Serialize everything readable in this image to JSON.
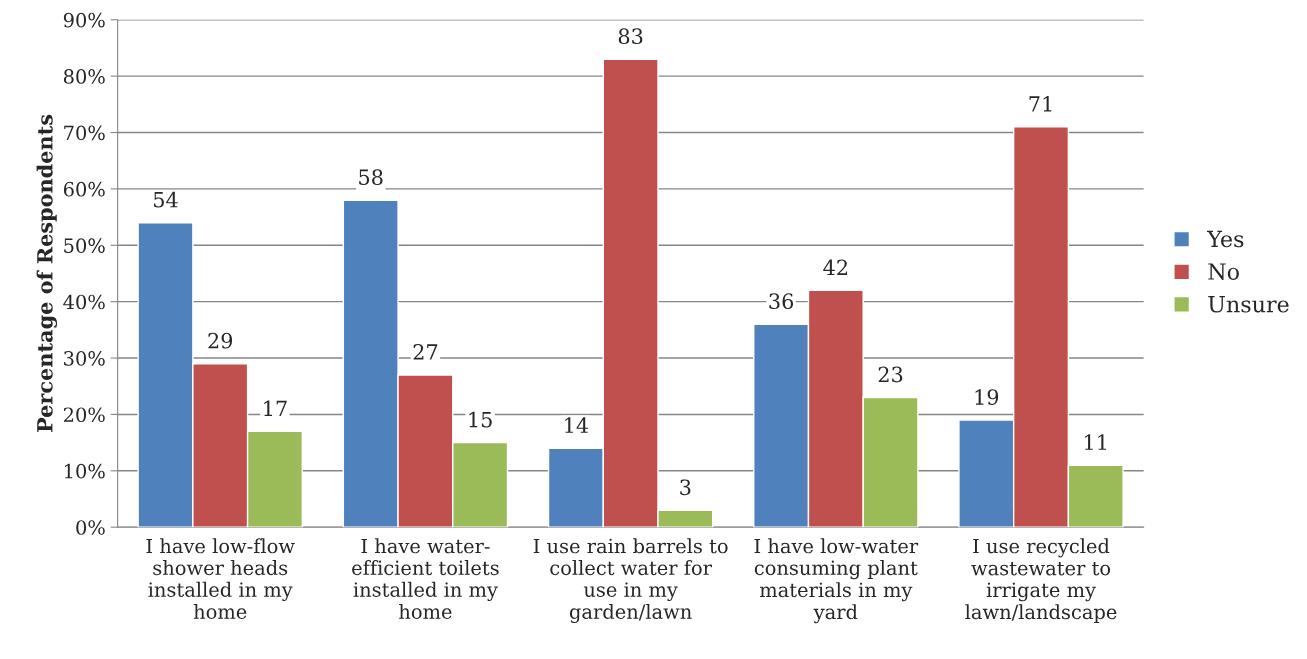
{
  "chart_data": {
    "type": "bar",
    "ylabel": "Percentage of Respondents",
    "categories": [
      "I have low-flow\nshower heads\ninstalled in my\nhome",
      "I have water-\nefficient toilets\ninstalled in my\nhome",
      "I use rain barrels to\ncollect water for\nuse in my\ngarden/lawn",
      "I have low-water\nconsuming plant\nmaterials in my\nyard",
      "I use recycled\nwastewater to\nirrigate my\nlawn/landscape"
    ],
    "series": [
      {
        "name": "Yes",
        "color": "#4f81bd",
        "values": [
          54,
          58,
          14,
          36,
          19
        ]
      },
      {
        "name": "No",
        "color": "#c0504d",
        "values": [
          29,
          27,
          83,
          42,
          71
        ]
      },
      {
        "name": "Unsure",
        "color": "#9bbb59",
        "values": [
          17,
          15,
          3,
          23,
          11
        ]
      }
    ],
    "ylim": [
      0,
      90
    ],
    "yticks": [
      {
        "value": 0,
        "label": "0%"
      },
      {
        "value": 10,
        "label": "10%"
      },
      {
        "value": 20,
        "label": "20%"
      },
      {
        "value": 30,
        "label": "30%"
      },
      {
        "value": 40,
        "label": "40%"
      },
      {
        "value": 50,
        "label": "50%"
      },
      {
        "value": 60,
        "label": "60%"
      },
      {
        "value": 70,
        "label": "70%"
      },
      {
        "value": 80,
        "label": "80%"
      },
      {
        "value": 90,
        "label": "90%"
      }
    ],
    "grid": "y",
    "legend": "right",
    "data_labels": true
  }
}
